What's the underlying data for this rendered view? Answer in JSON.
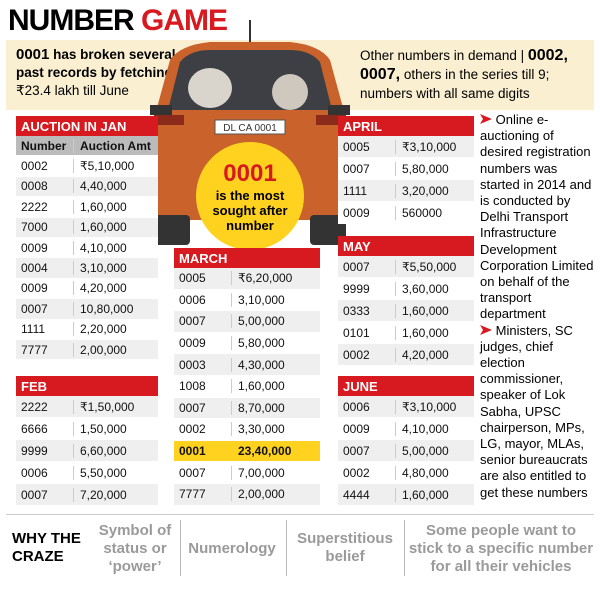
{
  "header": {
    "title_black": "NUMBER",
    "title_red": "GAME"
  },
  "intro_left": {
    "number": "0001",
    "text1": "has broken several past records by fetching",
    "amount": "₹23.4 lakh",
    "text2": "till June"
  },
  "intro_right": {
    "text1": "Other numbers in demand |",
    "numbers": "0002, 0007,",
    "text2": "others in the series till 9; numbers with all same digits"
  },
  "car": {
    "plate": "DL CA 0001"
  },
  "highlight": {
    "number": "0001",
    "text": "is the most sought after number"
  },
  "tables": {
    "jan": {
      "title": "AUCTION IN JAN",
      "columns": [
        "Number",
        "Auction Amt"
      ],
      "rows": [
        [
          "0002",
          "₹5,10,000"
        ],
        [
          "0008",
          "4,40,000"
        ],
        [
          "2222",
          "1,60,000"
        ],
        [
          "7000",
          "1,60,000"
        ],
        [
          "0009",
          "4,10,000"
        ],
        [
          "0004",
          "3,10,000"
        ],
        [
          "0009",
          "4,20,000"
        ],
        [
          "0007",
          "10,80,000"
        ],
        [
          "1111",
          "2,20,000"
        ],
        [
          "7777",
          "2,00,000"
        ]
      ]
    },
    "feb": {
      "title": "FEB",
      "rows": [
        [
          "2222",
          "₹1,50,000"
        ],
        [
          "6666",
          "1,50,000"
        ],
        [
          "9999",
          "6,60,000"
        ],
        [
          "0006",
          "5,50,000"
        ],
        [
          "0007",
          "7,20,000"
        ]
      ]
    },
    "march": {
      "title": "MARCH",
      "rows": [
        [
          "0005",
          "₹6,20,000"
        ],
        [
          "0006",
          "3,10,000"
        ],
        [
          "0007",
          "5,00,000"
        ],
        [
          "0009",
          "5,80,000"
        ],
        [
          "0003",
          "4,30,000"
        ],
        [
          "1008",
          "1,60,000"
        ],
        [
          "0007",
          "8,70,000"
        ],
        [
          "0002",
          "3,30,000"
        ],
        [
          "0001",
          "23,40,000"
        ],
        [
          "0007",
          "7,00,000"
        ],
        [
          "7777",
          "2,00,000"
        ]
      ]
    },
    "april": {
      "title": "APRIL",
      "rows": [
        [
          "0005",
          "₹3,10,000"
        ],
        [
          "0007",
          "5,80,000"
        ],
        [
          "1111",
          "3,20,000"
        ],
        [
          "0009",
          "560000"
        ]
      ]
    },
    "may": {
      "title": "MAY",
      "rows": [
        [
          "0007",
          "₹5,50,000"
        ],
        [
          "9999",
          "3,60,000"
        ],
        [
          "0333",
          "1,60,000"
        ],
        [
          "0101",
          "1,60,000"
        ],
        [
          "0002",
          "4,20,000"
        ]
      ]
    },
    "june": {
      "title": "JUNE",
      "rows": [
        [
          "0006",
          "₹3,10,000"
        ],
        [
          "0009",
          "4,10,000"
        ],
        [
          "0007",
          "5,00,000"
        ],
        [
          "0002",
          "4,80,000"
        ],
        [
          "4444",
          "1,60,000"
        ]
      ]
    }
  },
  "notes": [
    "Online e-auctioning of desired registration numbers was started in 2014 and is conducted by Delhi Transport Infrastructure Development Corporation Limited on behalf of the transport department",
    "Ministers, SC judges, chief election commissioner, speaker of Lok Sabha, UPSC chairperson, MPs, LG, mayor, MLAs, senior bureaucrats are also entitled to get these numbers"
  ],
  "why": {
    "label": "WHY THE CRAZE",
    "reasons": [
      "Symbol of status or ‘power’",
      "Numerology",
      "Superstitious belief",
      "Some people want to stick to a specific number for all their vehicles"
    ]
  }
}
